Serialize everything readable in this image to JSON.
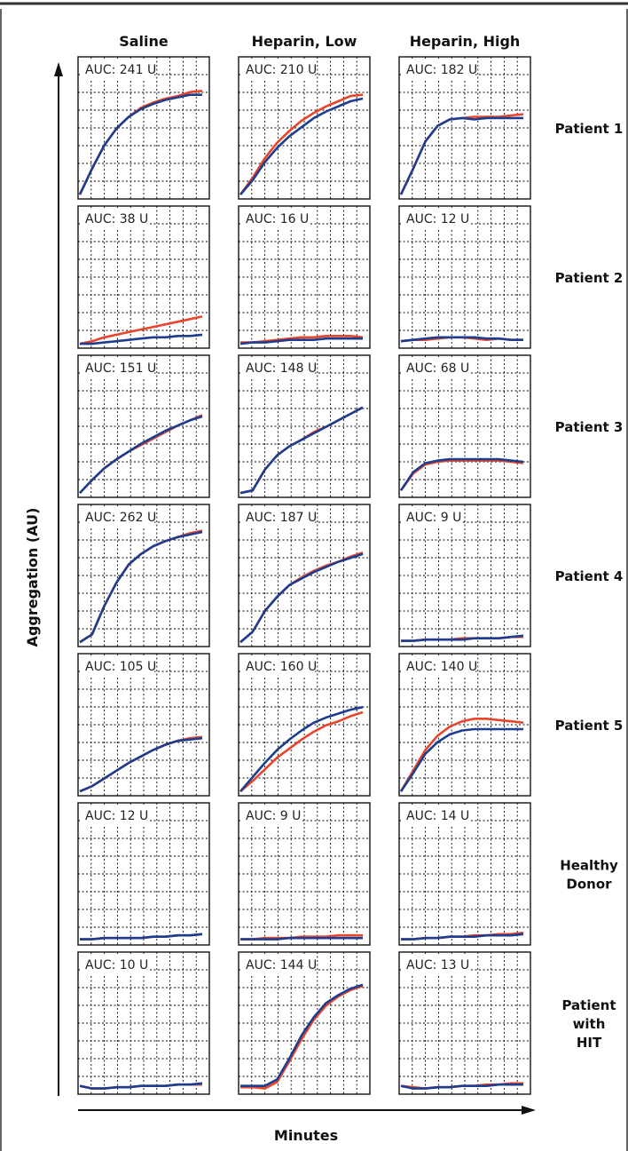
{
  "figure": {
    "col_headers": [
      "Saline",
      "Heparin, Low",
      "Heparin, High"
    ],
    "row_labels": [
      [
        "Patient 1"
      ],
      [
        "Patient 2"
      ],
      [
        "Patient 3"
      ],
      [
        "Patient 4"
      ],
      [
        "Patient 5"
      ],
      [
        "Healthy",
        "Donor"
      ],
      [
        "Patient",
        "with",
        "HIT"
      ]
    ],
    "y_axis_label": "Aggregation (AU)",
    "x_axis_label": "Minutes",
    "colors": {
      "red": "#e8452c",
      "blue": "#1d3d8f",
      "grid": "#000000",
      "frame": "#333333"
    }
  },
  "chart_data": {
    "type": "line",
    "description_rows": [
      "Patient 1",
      "Patient 2",
      "Patient 3",
      "Patient 4",
      "Patient 5",
      "Healthy Donor",
      "Patient with HIT"
    ],
    "columns": [
      "Saline",
      "Heparin, Low",
      "Heparin, High"
    ],
    "x": [
      0,
      0.1,
      0.2,
      0.3,
      0.4,
      0.5,
      0.6,
      0.7,
      0.8,
      0.9,
      1.0
    ],
    "ylim": [
      0,
      1
    ],
    "panels": [
      [
        {
          "auc": "AUC: 241 U",
          "red": [
            0.02,
            0.22,
            0.4,
            0.53,
            0.62,
            0.69,
            0.73,
            0.76,
            0.78,
            0.81,
            0.82
          ],
          "blue": [
            0.02,
            0.22,
            0.4,
            0.53,
            0.62,
            0.68,
            0.72,
            0.75,
            0.77,
            0.79,
            0.79
          ]
        },
        {
          "auc": "AUC: 210 U",
          "red": [
            0.02,
            0.15,
            0.3,
            0.42,
            0.51,
            0.59,
            0.65,
            0.7,
            0.74,
            0.78,
            0.79
          ],
          "blue": [
            0.02,
            0.13,
            0.27,
            0.38,
            0.47,
            0.54,
            0.61,
            0.66,
            0.7,
            0.74,
            0.76
          ]
        },
        {
          "auc": "AUC: 182 U",
          "red": [
            0.02,
            0.22,
            0.43,
            0.55,
            0.6,
            0.61,
            0.62,
            0.62,
            0.62,
            0.63,
            0.64
          ],
          "blue": [
            0.02,
            0.22,
            0.43,
            0.55,
            0.6,
            0.61,
            0.6,
            0.61,
            0.61,
            0.61,
            0.61
          ]
        }
      ],
      [
        {
          "auc": "AUC: 38 U",
          "red": [
            0.02,
            0.04,
            0.07,
            0.09,
            0.11,
            0.13,
            0.15,
            0.17,
            0.19,
            0.21,
            0.23
          ],
          "blue": [
            0.02,
            0.02,
            0.03,
            0.04,
            0.05,
            0.06,
            0.07,
            0.07,
            0.08,
            0.08,
            0.09
          ]
        },
        {
          "auc": "AUC: 16 U",
          "red": [
            0.03,
            0.03,
            0.04,
            0.05,
            0.06,
            0.07,
            0.07,
            0.08,
            0.08,
            0.08,
            0.07
          ],
          "blue": [
            0.02,
            0.03,
            0.03,
            0.04,
            0.05,
            0.05,
            0.05,
            0.06,
            0.06,
            0.06,
            0.06
          ]
        },
        {
          "auc": "AUC: 12 U",
          "red": [
            0.04,
            0.05,
            0.05,
            0.06,
            0.07,
            0.07,
            0.06,
            0.05,
            0.06,
            0.05,
            0.05
          ],
          "blue": [
            0.04,
            0.05,
            0.06,
            0.07,
            0.07,
            0.07,
            0.07,
            0.06,
            0.06,
            0.05,
            0.05
          ]
        }
      ],
      [
        {
          "auc": "AUC: 151 U",
          "red": [
            0.02,
            0.12,
            0.21,
            0.28,
            0.34,
            0.39,
            0.44,
            0.49,
            0.54,
            0.58,
            0.62
          ],
          "blue": [
            0.02,
            0.12,
            0.21,
            0.28,
            0.34,
            0.4,
            0.45,
            0.5,
            0.54,
            0.58,
            0.61
          ]
        },
        {
          "auc": "AUC: 148 U",
          "red": [
            0.02,
            0.04,
            0.2,
            0.31,
            0.38,
            0.43,
            0.49,
            0.53,
            0.58,
            0.63,
            0.68
          ],
          "blue": [
            0.02,
            0.04,
            0.2,
            0.31,
            0.38,
            0.43,
            0.48,
            0.53,
            0.58,
            0.63,
            0.68
          ]
        },
        {
          "auc": "AUC: 68 U",
          "red": [
            0.04,
            0.17,
            0.24,
            0.26,
            0.27,
            0.27,
            0.27,
            0.27,
            0.27,
            0.26,
            0.25
          ],
          "blue": [
            0.04,
            0.18,
            0.25,
            0.27,
            0.28,
            0.28,
            0.28,
            0.28,
            0.28,
            0.27,
            0.26
          ]
        }
      ],
      [
        {
          "auc": "AUC: 262 U",
          "red": [
            0.02,
            0.08,
            0.3,
            0.48,
            0.62,
            0.7,
            0.76,
            0.8,
            0.83,
            0.86,
            0.88
          ],
          "blue": [
            0.02,
            0.08,
            0.3,
            0.48,
            0.62,
            0.7,
            0.76,
            0.8,
            0.83,
            0.85,
            0.87
          ]
        },
        {
          "auc": "AUC: 187 U",
          "red": [
            0.02,
            0.1,
            0.26,
            0.37,
            0.46,
            0.52,
            0.57,
            0.61,
            0.64,
            0.68,
            0.71
          ],
          "blue": [
            0.02,
            0.1,
            0.26,
            0.37,
            0.46,
            0.51,
            0.56,
            0.6,
            0.64,
            0.67,
            0.7
          ]
        },
        {
          "auc": "AUC: 9 U",
          "red": [
            0.03,
            0.03,
            0.04,
            0.04,
            0.04,
            0.05,
            0.05,
            0.05,
            0.05,
            0.06,
            0.06
          ],
          "blue": [
            0.03,
            0.03,
            0.04,
            0.04,
            0.04,
            0.04,
            0.05,
            0.05,
            0.05,
            0.06,
            0.07
          ]
        }
      ],
      [
        {
          "auc": "AUC: 105 U",
          "red": [
            0.02,
            0.06,
            0.12,
            0.18,
            0.24,
            0.29,
            0.34,
            0.38,
            0.41,
            0.43,
            0.44
          ],
          "blue": [
            0.02,
            0.06,
            0.12,
            0.18,
            0.24,
            0.29,
            0.34,
            0.38,
            0.41,
            0.42,
            0.43
          ]
        },
        {
          "auc": "AUC: 160 U",
          "red": [
            0.02,
            0.1,
            0.19,
            0.28,
            0.35,
            0.42,
            0.48,
            0.53,
            0.56,
            0.6,
            0.63
          ],
          "blue": [
            0.02,
            0.13,
            0.24,
            0.34,
            0.42,
            0.49,
            0.55,
            0.59,
            0.62,
            0.65,
            0.67
          ]
        },
        {
          "auc": "AUC: 140 U",
          "red": [
            0.02,
            0.18,
            0.34,
            0.45,
            0.52,
            0.56,
            0.58,
            0.58,
            0.57,
            0.56,
            0.55
          ],
          "blue": [
            0.02,
            0.16,
            0.31,
            0.4,
            0.46,
            0.49,
            0.5,
            0.5,
            0.5,
            0.5,
            0.5
          ]
        }
      ],
      [
        {
          "auc": "AUC: 12 U",
          "red": [
            0.03,
            0.03,
            0.04,
            0.04,
            0.04,
            0.04,
            0.05,
            0.05,
            0.06,
            0.06,
            0.07
          ],
          "blue": [
            0.03,
            0.03,
            0.04,
            0.04,
            0.04,
            0.04,
            0.05,
            0.05,
            0.06,
            0.06,
            0.07
          ]
        },
        {
          "auc": "AUC: 9 U",
          "red": [
            0.03,
            0.03,
            0.04,
            0.04,
            0.04,
            0.05,
            0.05,
            0.05,
            0.06,
            0.06,
            0.06
          ],
          "blue": [
            0.03,
            0.03,
            0.03,
            0.03,
            0.04,
            0.04,
            0.04,
            0.04,
            0.04,
            0.04,
            0.04
          ]
        },
        {
          "auc": "AUC: 14 U",
          "red": [
            0.03,
            0.03,
            0.04,
            0.04,
            0.05,
            0.05,
            0.06,
            0.06,
            0.07,
            0.07,
            0.08
          ],
          "blue": [
            0.03,
            0.03,
            0.04,
            0.04,
            0.05,
            0.05,
            0.05,
            0.06,
            0.06,
            0.06,
            0.07
          ]
        }
      ],
      [
        {
          "auc": "AUC: 10 U",
          "red": [
            0.05,
            0.03,
            0.03,
            0.04,
            0.04,
            0.05,
            0.05,
            0.05,
            0.06,
            0.06,
            0.06
          ],
          "blue": [
            0.05,
            0.03,
            0.03,
            0.04,
            0.04,
            0.05,
            0.05,
            0.05,
            0.06,
            0.06,
            0.07
          ]
        },
        {
          "auc": "AUC: 144 U",
          "red": [
            0.04,
            0.04,
            0.03,
            0.08,
            0.24,
            0.41,
            0.56,
            0.67,
            0.74,
            0.79,
            0.82
          ],
          "blue": [
            0.05,
            0.05,
            0.05,
            0.1,
            0.26,
            0.44,
            0.58,
            0.69,
            0.75,
            0.8,
            0.83
          ]
        },
        {
          "auc": "AUC: 13 U",
          "red": [
            0.05,
            0.04,
            0.03,
            0.04,
            0.04,
            0.05,
            0.05,
            0.06,
            0.06,
            0.07,
            0.07
          ],
          "blue": [
            0.05,
            0.03,
            0.03,
            0.04,
            0.04,
            0.05,
            0.05,
            0.05,
            0.06,
            0.06,
            0.06
          ]
        }
      ]
    ]
  }
}
